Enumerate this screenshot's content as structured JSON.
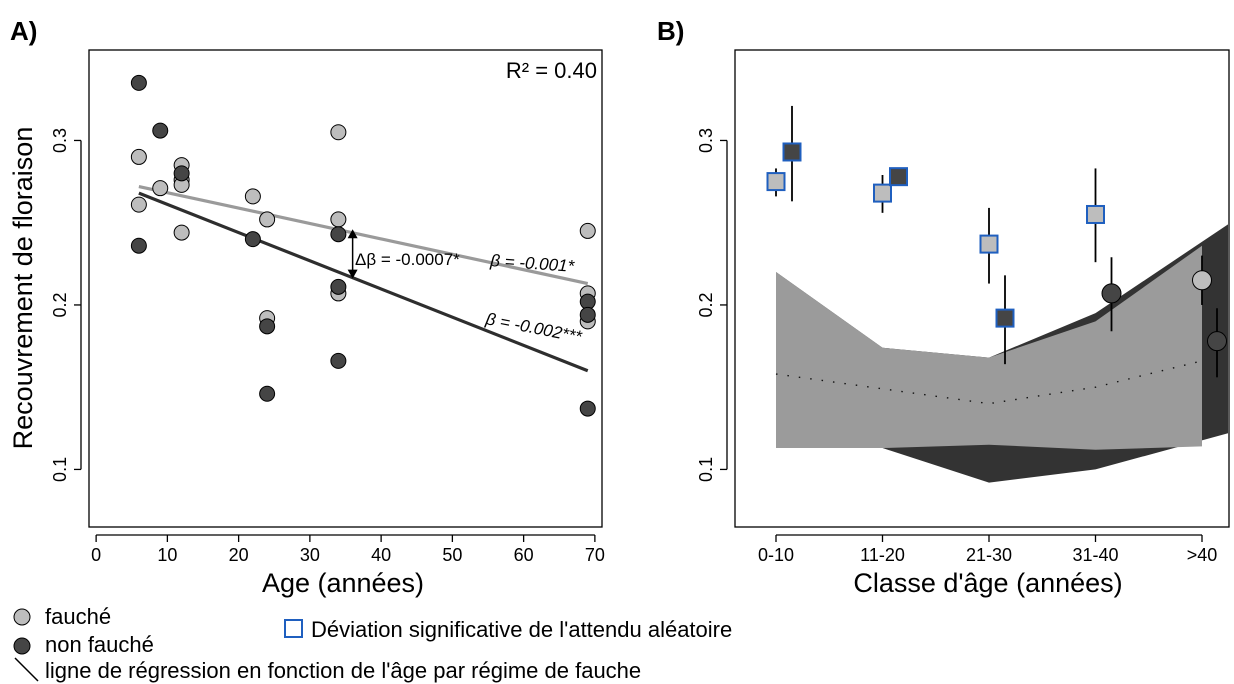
{
  "colors": {
    "fauche": "#bdbdbd",
    "non_fauche": "#454545",
    "fauche_line": "#9a9a9a",
    "non_fauche_line": "#2e2e2e",
    "deviation_border": "#1f5fbf",
    "null_light": "#9b9b9b",
    "null_dark": "#333333"
  },
  "legend": {
    "fauche": "fauché",
    "non_fauche": "non fauché",
    "deviation": "Déviation significative de l'attendu aléatoire",
    "regression": "ligne de régression en fonction de l'âge par régime de fauche"
  },
  "chart_data": [
    {
      "panel": "A)",
      "type": "scatter",
      "xlabel": "Age (années)",
      "ylabel": "Recouvrement de floraison",
      "xlim": [
        -1,
        71
      ],
      "ylim": [
        0.065,
        0.355
      ],
      "xticks": [
        "0",
        "10",
        "20",
        "30",
        "40",
        "50",
        "60",
        "70"
      ],
      "yticks": [
        "0.1",
        "0.2",
        "0.3"
      ],
      "r2": "R² = 0.40",
      "series": [
        {
          "name": "fauché",
          "points": [
            [
              6,
              0.29
            ],
            [
              6,
              0.261
            ],
            [
              9,
              0.271
            ],
            [
              12,
              0.285
            ],
            [
              12,
              0.276
            ],
            [
              12,
              0.273
            ],
            [
              12,
              0.244
            ],
            [
              22,
              0.266
            ],
            [
              24,
              0.252
            ],
            [
              24,
              0.192
            ],
            [
              34,
              0.305
            ],
            [
              34,
              0.252
            ],
            [
              34,
              0.207
            ],
            [
              69,
              0.245
            ],
            [
              69,
              0.207
            ],
            [
              69,
              0.19
            ]
          ]
        },
        {
          "name": "non fauché",
          "points": [
            [
              6,
              0.335
            ],
            [
              6,
              0.236
            ],
            [
              9,
              0.306
            ],
            [
              12,
              0.28
            ],
            [
              22,
              0.24
            ],
            [
              24,
              0.187
            ],
            [
              24,
              0.146
            ],
            [
              34,
              0.243
            ],
            [
              34,
              0.211
            ],
            [
              34,
              0.166
            ],
            [
              69,
              0.202
            ],
            [
              69,
              0.194
            ],
            [
              69,
              0.137
            ]
          ]
        }
      ],
      "regression": [
        {
          "name": "fauché",
          "x": [
            6,
            69
          ],
          "y": [
            0.272,
            0.213
          ],
          "label": "β = -0.001*"
        },
        {
          "name": "non fauché",
          "x": [
            6,
            69
          ],
          "y": [
            0.268,
            0.16
          ],
          "label": "β = -0.002***"
        }
      ],
      "delta": {
        "x": 36,
        "y": [
          0.246,
          0.216
        ],
        "label": "Δβ = -0.0007*"
      }
    },
    {
      "panel": "B)",
      "type": "scatter",
      "xlabel": "Classe d'âge (années)",
      "categories": [
        "0-10",
        "11-20",
        "21-30",
        "31-40",
        ">40"
      ],
      "ylim": [
        0.065,
        0.355
      ],
      "yticks": [
        "0.1",
        "0.2",
        "0.3"
      ],
      "series": [
        {
          "name": "fauché",
          "values": [
            0.275,
            0.268,
            0.237,
            0.255,
            0.215
          ],
          "ci_low": [
            0.266,
            0.256,
            0.213,
            0.226,
            0.2
          ],
          "ci_high": [
            0.283,
            0.279,
            0.259,
            0.283,
            0.23
          ],
          "significant": [
            true,
            true,
            true,
            true,
            false
          ]
        },
        {
          "name": "non fauché",
          "values": [
            0.293,
            0.278,
            0.192,
            0.207,
            0.178
          ],
          "ci_low": [
            0.263,
            0.275,
            0.164,
            0.184,
            0.156
          ],
          "ci_high": [
            0.321,
            0.281,
            0.218,
            0.229,
            0.198
          ],
          "significant": [
            true,
            true,
            true,
            false,
            false
          ]
        }
      ],
      "null_band_fauche": {
        "low": [
          0.113,
          0.113,
          0.115,
          0.112,
          0.114
        ],
        "high": [
          0.22,
          0.174,
          0.168,
          0.19,
          0.236
        ],
        "mean": [
          0.158,
          0.149,
          0.14,
          0.15,
          0.166
        ]
      },
      "null_band_non_fauche": {
        "low": [
          0.113,
          0.113,
          0.092,
          0.1,
          0.122
        ],
        "high": [
          0.22,
          0.174,
          0.168,
          0.195,
          0.249
        ]
      }
    }
  ]
}
